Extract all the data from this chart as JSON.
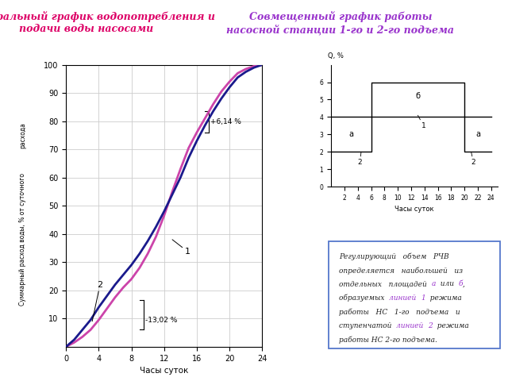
{
  "title1": "Интегральный график водопотребления и\nподачи воды насосами",
  "title2": "Совмещенный график работы\nнасосной станции 1-го и 2-го подъема",
  "xlabel1": "Часы суток",
  "xlabel2": "Часы суток",
  "ylabel1_lines": [
    "расхода",
    "Суммарный расход воды, % от суточного"
  ],
  "ylabel2": "Q, %",
  "annotation_plus": "+6,14 %",
  "annotation_minus": "-13,02 %",
  "curve1_color": "#cc44aa",
  "curve2_color": "#1a1a8c",
  "title_color": "#dd0066",
  "title2_color": "#9933cc",
  "bg_color": "#ffffff",
  "grid_color": "#cccccc",
  "integral_x1": [
    0,
    1,
    2,
    3,
    4,
    5,
    6,
    7,
    8,
    9,
    10,
    11,
    12,
    13,
    14,
    15,
    16,
    17,
    18,
    19,
    20,
    21,
    22,
    23,
    24
  ],
  "integral_y1": [
    0,
    1.5,
    3.5,
    6.0,
    9.5,
    13.5,
    17.5,
    21.0,
    24.0,
    28.0,
    33.0,
    39.0,
    46.5,
    55.0,
    63.0,
    70.5,
    76.0,
    81.0,
    86.0,
    90.5,
    94.0,
    97.0,
    98.5,
    99.5,
    100.0
  ],
  "integral_x2": [
    0,
    1,
    2,
    3,
    4,
    5,
    6,
    7,
    8,
    9,
    10,
    11,
    12,
    13,
    14,
    15,
    16,
    17,
    18,
    19,
    20,
    21,
    22,
    23,
    24
  ],
  "integral_y2": [
    0,
    2.5,
    6.0,
    9.5,
    14.0,
    18.0,
    22.0,
    25.5,
    29.0,
    33.0,
    37.5,
    42.5,
    48.0,
    54.0,
    60.0,
    67.0,
    73.0,
    78.5,
    83.5,
    88.0,
    92.0,
    95.5,
    97.5,
    99.0,
    100.0
  ],
  "textbox_color": "#5577cc"
}
